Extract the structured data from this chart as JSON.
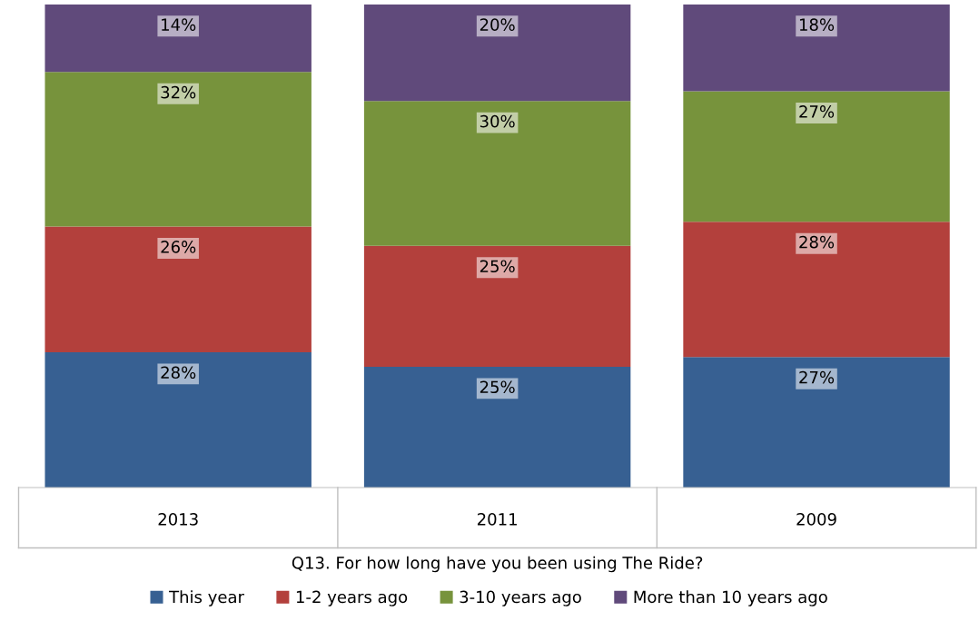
{
  "chart_data": {
    "type": "bar",
    "stacked": true,
    "xlabel": "Q13. For how long have you been using The Ride?",
    "categories": [
      "2013",
      "2011",
      "2009"
    ],
    "series": [
      {
        "name": "This year",
        "color": "#376092",
        "values": [
          28,
          25,
          27
        ],
        "value_labels": [
          "28%",
          "25%",
          "27%"
        ]
      },
      {
        "name": "1-2 years ago",
        "color": "#b3403c",
        "values": [
          26,
          25,
          28
        ],
        "value_labels": [
          "26%",
          "25%",
          "28%"
        ]
      },
      {
        "name": "3-10 years ago",
        "color": "#77933c",
        "values": [
          32,
          30,
          27
        ],
        "value_labels": [
          "32%",
          "30%",
          "27%"
        ]
      },
      {
        "name": "More than 10 years ago",
        "color": "#604a7b",
        "values": [
          14,
          20,
          18
        ],
        "value_labels": [
          "14%",
          "20%",
          "18%"
        ]
      }
    ],
    "legend": "bottom"
  }
}
